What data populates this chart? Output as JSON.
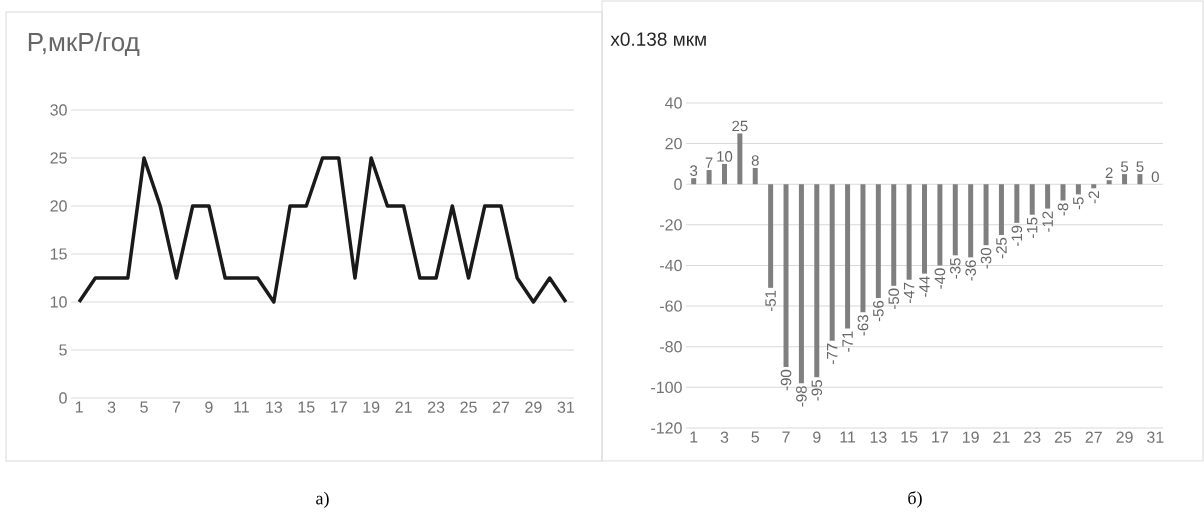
{
  "chart_data": [
    {
      "type": "line",
      "title": "P,мкР/год",
      "categories": [
        "1",
        null,
        "3",
        null,
        "5",
        null,
        "7",
        null,
        "9",
        null,
        "11",
        null,
        "13",
        null,
        "15",
        null,
        "17",
        null,
        "19",
        null,
        "21",
        null,
        "23",
        null,
        "25",
        null,
        "27",
        null,
        "29",
        null,
        "31"
      ],
      "values": [
        10,
        12.5,
        12.5,
        12.5,
        25,
        20,
        12.5,
        20,
        20,
        12.5,
        12.5,
        12.5,
        10,
        20,
        20,
        25,
        25,
        12.5,
        25,
        20,
        20,
        12.5,
        12.5,
        20,
        12.5,
        20,
        20,
        12.5,
        10,
        12.5,
        10
      ],
      "color": "#1a1a1a",
      "ylim": [
        0,
        30
      ],
      "yticks": [
        0,
        5,
        10,
        15,
        20,
        25,
        30
      ],
      "grid": "y",
      "annotations": [
        "a)"
      ]
    },
    {
      "type": "bar",
      "title": "x0.138 мкм",
      "categories": [
        "1",
        null,
        "3",
        null,
        "5",
        null,
        "7",
        null,
        "9",
        null,
        "11",
        null,
        "13",
        null,
        "15",
        null,
        "17",
        null,
        "19",
        null,
        "21",
        null,
        "23",
        null,
        "25",
        null,
        "27",
        null,
        "29",
        null,
        "31"
      ],
      "values": [
        3,
        7,
        10,
        25,
        8,
        -51,
        -90,
        -98,
        -95,
        -77,
        -71,
        -63,
        -56,
        -50,
        -47,
        -44,
        -40,
        -35,
        -36,
        -30,
        -25,
        -19,
        -15,
        -12,
        -8,
        -5,
        -2,
        2,
        5,
        5,
        0
      ],
      "color": "#7f7f7f",
      "ylim": [
        -120,
        40
      ],
      "yticks": [
        -120,
        -100,
        -80,
        -60,
        -40,
        -20,
        0,
        20,
        40
      ],
      "grid": "y",
      "data_labels": true,
      "annotations": [
        "б)"
      ]
    }
  ]
}
